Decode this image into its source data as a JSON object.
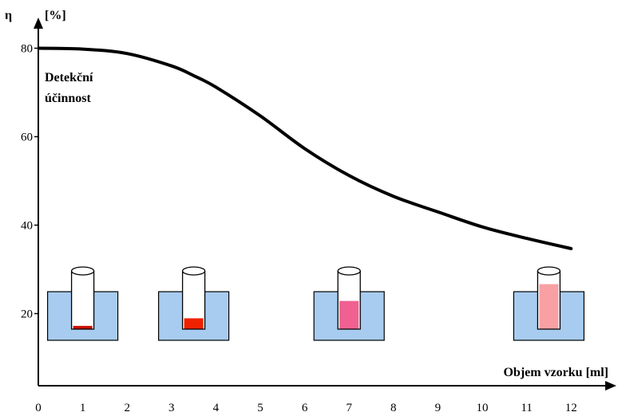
{
  "chart_data": {
    "type": "line",
    "ylabel_symbol": "η",
    "ylabel_unit": "[%]",
    "xlabel": "Objem vzorku  [ml]",
    "annotation_line1": "Detekční",
    "annotation_line2": "účinnost",
    "xlim": [
      0,
      12
    ],
    "ylim": [
      0,
      80
    ],
    "x_ticks": [
      0,
      1,
      2,
      3,
      4,
      5,
      6,
      7,
      8,
      9,
      10,
      11,
      12
    ],
    "y_ticks": [
      20,
      40,
      60,
      80
    ],
    "series": [
      {
        "x": [
          0,
          1,
          2,
          3,
          3.5,
          4,
          5,
          6,
          7,
          8,
          9,
          10,
          11,
          12
        ],
        "y": [
          80,
          79.8,
          78.8,
          76,
          73.8,
          71.2,
          64.7,
          57.3,
          51.2,
          46.5,
          43,
          39.6,
          37,
          34.7
        ],
        "color": "#000000"
      }
    ],
    "vials": [
      {
        "volume": 1,
        "fill_fraction": 0.06,
        "fill_color": "#cc1100"
      },
      {
        "volume": 3.5,
        "fill_fraction": 0.2,
        "fill_color": "#ee2200"
      },
      {
        "volume": 7,
        "fill_fraction": 0.52,
        "fill_color": "#f06090"
      },
      {
        "volume": 11.5,
        "fill_fraction": 0.83,
        "fill_color": "#f8a0a4"
      }
    ],
    "bath_color": "#a8ccf0"
  }
}
